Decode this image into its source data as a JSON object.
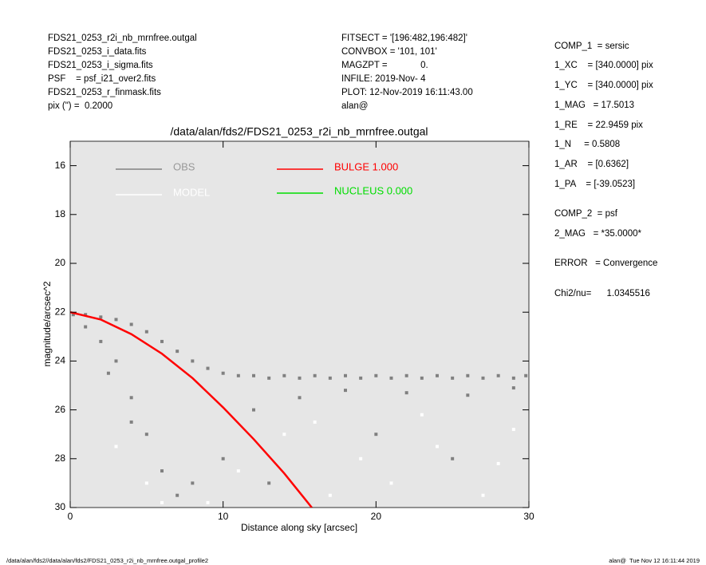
{
  "header": {
    "left": [
      "FDS21_0253_r2i_nb_mrnfree.outgal",
      "FDS21_0253_i_data.fits",
      "FDS21_0253_i_sigma.fits",
      "PSF    = psf_i21_over2.fits",
      "FDS21_0253_r_finmask.fits",
      "pix (\") =  0.2000"
    ],
    "middle": [
      "FITSECT = '[196:482,196:482]'",
      "CONVBOX = '101, 101'",
      "MAGZPT =             0.",
      "INFILE: 2019-Nov- 4",
      "PLOT: 12-Nov-2019 16:11:43.00",
      "alan@"
    ]
  },
  "params": [
    "COMP_1  = sersic",
    "1_XC    = [340.0000] pix",
    "1_YC    = [340.0000] pix",
    "1_MAG   = 17.5013",
    "1_RE    = 22.9459 pix",
    "1_N     = 0.5808",
    "1_AR    = [0.6362]",
    "1_PA    = [-39.0523]",
    "COMP_2  = psf",
    "2_MAG   = *35.0000*",
    "ERROR   = Convergence",
    "Chi2/nu=      1.0345516"
  ],
  "footer": {
    "left": "/data/alan/fds2//data/alan/fds2/FDS21_0253_r2i_nb_mrnfree.outgal_profile2",
    "right": "alan@  Tue Nov 12 16:11:44 2019"
  },
  "chart_data": {
    "type": "scatter",
    "title": "/data/alan/fds2/FDS21_0253_r2i_nb_mrnfree.outgal",
    "x_label": "Distance along sky [arcsec]",
    "y_label": "magnitude/arcsec^2",
    "xlim": [
      0,
      30
    ],
    "xticks": [
      0,
      10,
      20,
      30
    ],
    "ylim": [
      30,
      15
    ],
    "yticks": [
      16,
      18,
      20,
      22,
      24,
      26,
      28,
      30
    ],
    "series": [
      {
        "name": "OBS",
        "color": "#808080",
        "style": "points",
        "x": [
          0.2,
          1,
          2,
          3,
          4,
          5,
          6,
          7,
          8,
          9,
          10,
          11,
          12,
          13,
          14,
          15,
          16,
          17,
          18,
          19,
          20,
          21,
          22,
          23,
          24,
          25,
          26,
          27,
          28,
          29,
          29.8,
          1,
          2,
          3,
          4,
          5,
          6,
          7,
          8,
          12,
          15,
          18,
          22,
          26,
          29,
          10,
          20,
          25,
          13,
          4,
          2.5
        ],
        "values": [
          22.1,
          22.1,
          22.2,
          22.3,
          22.5,
          22.8,
          23.2,
          23.6,
          24.0,
          24.3,
          24.5,
          24.6,
          24.6,
          24.7,
          24.6,
          24.7,
          24.6,
          24.7,
          24.6,
          24.7,
          24.6,
          24.7,
          24.6,
          24.7,
          24.6,
          24.7,
          24.6,
          24.7,
          24.6,
          24.7,
          24.6,
          22.6,
          23.2,
          24,
          25.5,
          27,
          28.5,
          29.5,
          29,
          26,
          25.5,
          25.2,
          25.3,
          25.4,
          25.1,
          28,
          27,
          28,
          29,
          26.5,
          24.5
        ]
      },
      {
        "name": "MODEL",
        "color": "#ffffff",
        "style": "points",
        "x": [
          3,
          5,
          6,
          11,
          14,
          16,
          19,
          21,
          24,
          27,
          29,
          9,
          17,
          23,
          28
        ],
        "values": [
          27.5,
          29,
          29.8,
          28.5,
          27,
          26.5,
          28,
          29,
          27.5,
          29.5,
          26.8,
          29.8,
          29.5,
          26.2,
          28.2
        ]
      },
      {
        "name": "BULGE  1.000",
        "color": "#ff0000",
        "style": "line",
        "x": [
          0,
          2,
          4,
          6,
          8,
          10,
          12,
          14,
          15.8
        ],
        "values": [
          22,
          22.3,
          22.9,
          23.7,
          24.7,
          25.9,
          27.2,
          28.6,
          30
        ]
      },
      {
        "name": "NUCLEUS  0.000",
        "color": "#00dd00",
        "style": "line",
        "x": [],
        "values": []
      }
    ]
  }
}
